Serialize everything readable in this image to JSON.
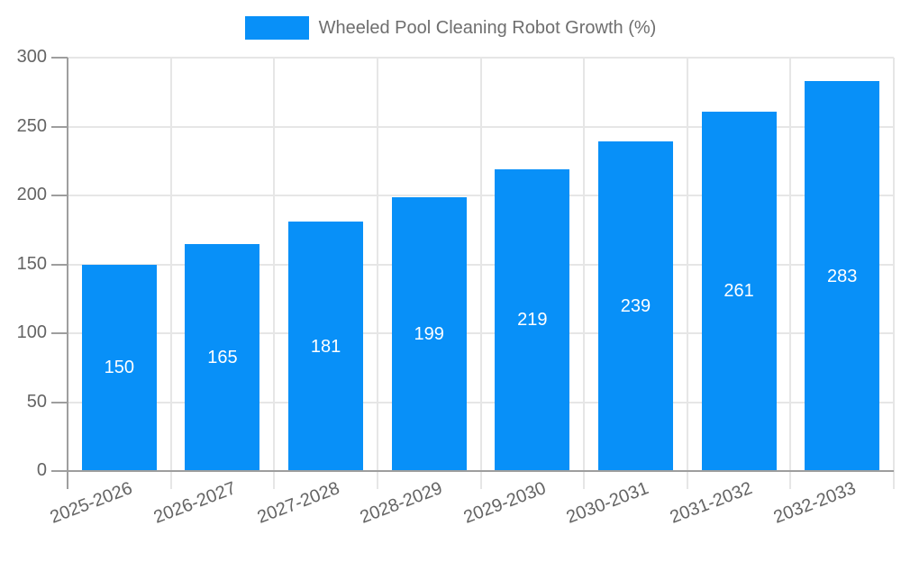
{
  "legend": {
    "label": "Wheeled Pool Cleaning Robot Growth (%)",
    "swatch_color": "#0890f8"
  },
  "chart_data": {
    "type": "bar",
    "title": "Wheeled Pool Cleaning Robot Growth (%)",
    "categories": [
      "2025-2026",
      "2026-2027",
      "2027-2028",
      "2028-2029",
      "2029-2030",
      "2030-2031",
      "2031-2032",
      "2032-2033"
    ],
    "values": [
      150,
      165,
      181,
      199,
      219,
      239,
      261,
      283
    ],
    "xlabel": "",
    "ylabel": "",
    "ylim": [
      0,
      300
    ],
    "yticks": [
      0,
      50,
      100,
      150,
      200,
      250,
      300
    ],
    "bar_color": "#0890f8",
    "value_label_color": "#ffffff",
    "grid": true,
    "legend_position": "top-center",
    "axis_color": "#9e9e9e",
    "gridline_color": "#e6e6e6",
    "tick_label_color": "#646464"
  }
}
